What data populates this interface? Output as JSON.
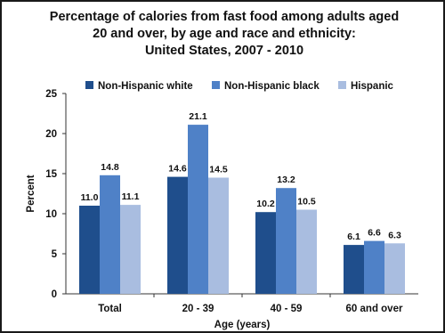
{
  "chart_data": {
    "type": "bar",
    "title": [
      "Percentage of calories from fast food among adults aged",
      "20 and over, by age and race and ethnicity:",
      "United States, 2007 - 2010"
    ],
    "xlabel": "Age (years)",
    "ylabel": "Percent",
    "ylim": [
      0,
      25
    ],
    "yticks": [
      0,
      5,
      10,
      15,
      20,
      25
    ],
    "categories": [
      "Total",
      "20 - 39",
      "40 - 59",
      "60 and over"
    ],
    "series": [
      {
        "name": "Non-Hispanic white",
        "color": "#1f4e8c",
        "values": [
          11.0,
          14.6,
          10.2,
          6.1
        ]
      },
      {
        "name": "Non-Hispanic black",
        "color": "#4f81c7",
        "values": [
          14.8,
          21.1,
          13.2,
          6.6
        ]
      },
      {
        "name": "Hispanic",
        "color": "#a9bde0",
        "values": [
          11.1,
          14.5,
          10.5,
          6.3
        ]
      }
    ],
    "value_labels": [
      [
        "11.0",
        "14.6",
        "10.2",
        "6.1"
      ],
      [
        "14.8",
        "21.1",
        "13.2",
        "6.6"
      ],
      [
        "11.1",
        "14.5",
        "10.5",
        "6.3"
      ]
    ],
    "legend_position": "top",
    "grid": false
  }
}
